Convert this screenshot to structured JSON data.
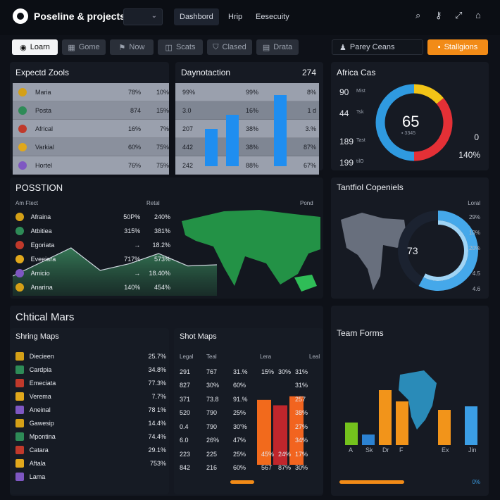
{
  "header": {
    "app_title": "Poseline & projects",
    "nav": [
      "Dashbord",
      "Hrip",
      "Eesecuity"
    ]
  },
  "toolbar": {
    "buttons": [
      "Loarn",
      "Gome",
      "Now",
      "Scats",
      "Clased",
      "Drata"
    ],
    "search_value": "Parey Ceans",
    "action_label": "Stallgions"
  },
  "expected": {
    "title": "Expectd Zools",
    "rows": [
      {
        "name": "Maria",
        "a": "78%",
        "b": "10%"
      },
      {
        "name": "Posta",
        "a": "874",
        "b": "15%"
      },
      {
        "name": "Africal",
        "a": "16%",
        "b": "7%"
      },
      {
        "name": "Varkial",
        "a": "60%",
        "b": "75%"
      },
      {
        "name": "Hortel",
        "a": "76%",
        "b": "75%"
      }
    ]
  },
  "dyn": {
    "title": "Daynotaction",
    "value": "274",
    "rows": [
      [
        "99%",
        "99%",
        "8%"
      ],
      [
        "3.0",
        "16%",
        "1 d"
      ],
      [
        "207",
        "38%",
        "3.%"
      ],
      [
        "442",
        "38%",
        "87%"
      ],
      [
        "242",
        "88%",
        "67%"
      ]
    ],
    "bars": [
      0.45,
      0.62,
      0.86
    ]
  },
  "africa": {
    "title": "Africa Cas",
    "left": [
      {
        "v": "90",
        "t": "Mist"
      },
      {
        "v": "44",
        "t": "Tsk"
      },
      {
        "v": "189",
        "t": "Tast"
      },
      {
        "v": "199",
        "t": "tilO"
      }
    ],
    "center": "65",
    "center_sub": "▪ 3345",
    "right_top": "0",
    "right_bottom": "140%",
    "segments": [
      {
        "color": "#f2c417",
        "value": 0.14
      },
      {
        "color": "#e43036",
        "value": 0.36
      },
      {
        "color": "#2f9ae0",
        "value": 0.5
      }
    ]
  },
  "position": {
    "title": "POSSTION",
    "col1": "Am Ftect",
    "col2": "Retal",
    "col3": "Pond",
    "rows": [
      {
        "name": "Afraina",
        "a": "50P%",
        "b": "240%"
      },
      {
        "name": "Atbitiea",
        "a": "315%",
        "b": "381%"
      },
      {
        "name": "Egoriata",
        "a": "→",
        "b": "18.2%"
      },
      {
        "name": "Eveeiara",
        "a": "717%",
        "b": "573%"
      },
      {
        "name": "Amicio",
        "a": "→",
        "b": "18.40%"
      },
      {
        "name": "Anarina",
        "a": "140%",
        "b": "454%"
      }
    ],
    "line": [
      0.1,
      0.35,
      0.6,
      0.2,
      0.32,
      0.5,
      0.28,
      0.3
    ]
  },
  "fanful": {
    "title": "Tantfiol Copeniels",
    "col": "Loral",
    "center": "73",
    "values": [
      "29%",
      "10%",
      "20%",
      "4.5",
      "4.6"
    ],
    "ring": 0.58
  },
  "critical": {
    "title": "Chtical Mars"
  },
  "shring": {
    "title": "Shring Maps",
    "rows": [
      {
        "name": "Diecieen",
        "v": "25.7%"
      },
      {
        "name": "Cardpia",
        "v": "34.8%"
      },
      {
        "name": "Emeciata",
        "v": "77.3%"
      },
      {
        "name": "Verema",
        "v": "7.7%"
      },
      {
        "name": "Aneinal",
        "v": "78 1%"
      },
      {
        "name": "Gawesip",
        "v": "14.4%"
      },
      {
        "name": "Mpontina",
        "v": "74.4%"
      },
      {
        "name": "Catara",
        "v": "29.1%"
      },
      {
        "name": "Aftala",
        "v": "753%"
      },
      {
        "name": "Lama",
        "v": ""
      }
    ]
  },
  "shot": {
    "title": "Shot Maps",
    "h1": "Legal",
    "h2": "Teal",
    "h3": "Lera",
    "h4": "Leal",
    "rows": [
      [
        "291",
        "767",
        "31.%",
        "15%",
        "30%",
        "31%"
      ],
      [
        "827",
        "30%",
        "60%",
        "",
        "",
        "31%"
      ],
      [
        "371",
        "73.8",
        "91.%",
        "",
        "",
        "257"
      ],
      [
        "520",
        "790",
        "25%",
        "",
        "",
        "38%"
      ],
      [
        "0.4",
        "790",
        "30'%",
        "",
        "",
        "27%"
      ],
      [
        "6.0",
        "26%",
        "47%",
        "",
        "",
        "34%"
      ],
      [
        "223",
        "225",
        "25%",
        "45%",
        "24%",
        "17%"
      ],
      [
        "842",
        "216",
        "60%",
        "567",
        "87%",
        "30%"
      ]
    ],
    "bars": [
      {
        "color": "#f26a1c",
        "value": 0.72
      },
      {
        "color": "#c0262c",
        "value": 0.66
      },
      {
        "color": "#f2641f",
        "value": 0.76
      }
    ]
  },
  "team": {
    "title": "Team Forms",
    "labels": [
      "A",
      "Sk",
      "Dr",
      "F",
      "Ex",
      "Jin"
    ],
    "bars": [
      {
        "color": "#74c21d",
        "value": 0.32
      },
      {
        "color": "#2c82d2",
        "value": 0.15
      },
      {
        "color": "#f2941a",
        "value": 0.78
      },
      {
        "color": "#f2941a",
        "value": 0.62
      },
      {
        "color": "#f2941a",
        "value": 0.5
      },
      {
        "color": "#3b9ee5",
        "value": 0.55
      }
    ],
    "footer": "0%"
  }
}
